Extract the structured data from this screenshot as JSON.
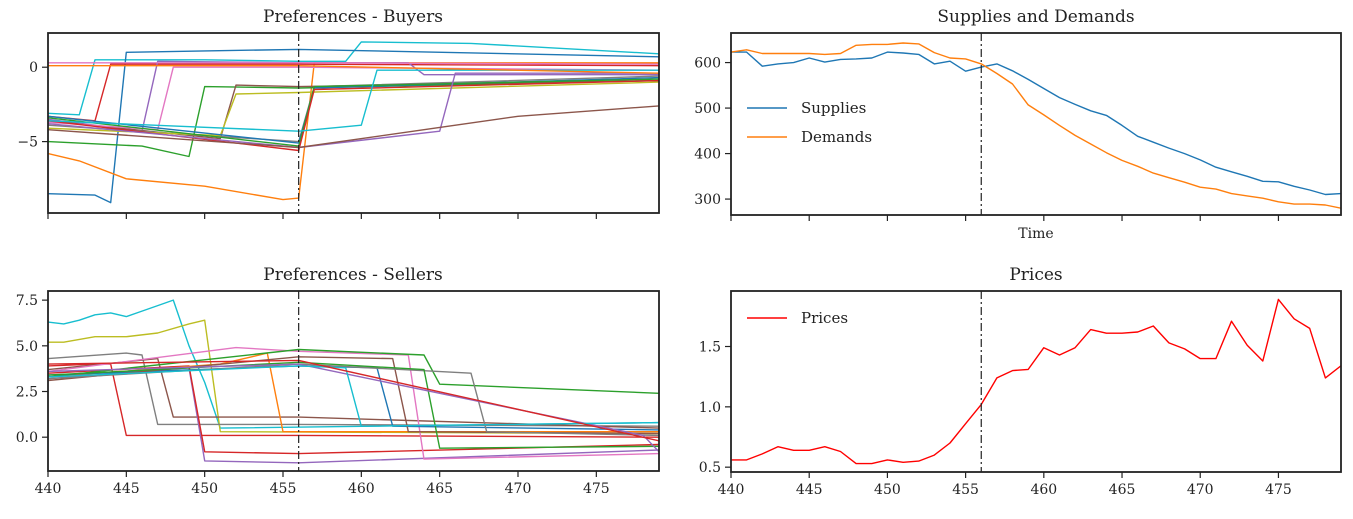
{
  "chart_data": [
    {
      "id": "buyers",
      "type": "line",
      "title": "Preferences - Buyers",
      "xlabel": "",
      "ylabel": "",
      "xlim": [
        440,
        479
      ],
      "ylim": [
        -9.8,
        2.3
      ],
      "yticks": [
        0,
        -5
      ],
      "ytick_labels": [
        "0",
        "−5"
      ],
      "xticks": [
        440,
        445,
        450,
        455,
        460,
        465,
        470,
        475
      ],
      "show_xtick_labels": false,
      "vline": 456,
      "series": [
        {
          "color": "#17becf",
          "x": [
            440,
            442,
            443,
            450,
            456,
            459,
            460,
            467,
            479
          ],
          "y": [
            -3.1,
            -3.2,
            0.5,
            0.5,
            0.4,
            0.4,
            1.7,
            1.6,
            0.9
          ]
        },
        {
          "color": "#1f77b4",
          "x": [
            440,
            443,
            444,
            445,
            450,
            456,
            479
          ],
          "y": [
            -8.5,
            -8.6,
            -9.1,
            1.0,
            1.1,
            1.2,
            0.7
          ]
        },
        {
          "color": "#ff7f0e",
          "x": [
            440,
            442,
            445,
            450,
            455,
            456,
            457,
            479
          ],
          "y": [
            -5.8,
            -6.3,
            -7.5,
            -8.0,
            -8.9,
            -8.8,
            0.3,
            0.3
          ]
        },
        {
          "color": "#2ca02c",
          "x": [
            440,
            446,
            449,
            450,
            456,
            479
          ],
          "y": [
            -5.0,
            -5.3,
            -6.0,
            -1.3,
            -1.4,
            -0.9
          ]
        },
        {
          "color": "#d62728",
          "x": [
            440,
            443,
            444,
            456,
            479
          ],
          "y": [
            -3.3,
            -3.6,
            0.2,
            0.2,
            0.1
          ]
        },
        {
          "color": "#9467bd",
          "x": [
            440,
            446,
            447,
            456,
            463,
            464,
            479
          ],
          "y": [
            -3.5,
            -4.3,
            0.4,
            0.3,
            0.3,
            -0.5,
            -0.5
          ]
        },
        {
          "color": "#8c564b",
          "x": [
            440,
            451,
            452,
            456,
            479
          ],
          "y": [
            -3.6,
            -4.8,
            -1.2,
            -1.3,
            -0.9
          ]
        },
        {
          "color": "#e377c2",
          "x": [
            440,
            447,
            448,
            456,
            479
          ],
          "y": [
            -3.7,
            -4.2,
            0.0,
            0.0,
            -0.2
          ]
        },
        {
          "color": "#7f7f7f",
          "x": [
            440,
            456,
            457,
            479
          ],
          "y": [
            -3.9,
            -5.0,
            -1.3,
            -0.6
          ]
        },
        {
          "color": "#bcbd22",
          "x": [
            440,
            451,
            452,
            456,
            479
          ],
          "y": [
            -4.1,
            -4.6,
            -1.8,
            -1.7,
            -1.0
          ]
        },
        {
          "color": "#1f77b4",
          "x": [
            440,
            456,
            457,
            479
          ],
          "y": [
            -3.3,
            -5.1,
            -1.4,
            -0.7
          ]
        },
        {
          "color": "#2ca02c",
          "x": [
            440,
            456,
            457,
            479
          ],
          "y": [
            -3.4,
            -5.3,
            -1.3,
            -0.8
          ]
        },
        {
          "color": "#d62728",
          "x": [
            440,
            456,
            457,
            479
          ],
          "y": [
            -3.6,
            -5.6,
            -1.5,
            -0.9
          ]
        },
        {
          "color": "#9467bd",
          "x": [
            440,
            456,
            465,
            466,
            479
          ],
          "y": [
            -3.8,
            -5.4,
            -4.3,
            -0.4,
            -0.4
          ]
        },
        {
          "color": "#8c564b",
          "x": [
            440,
            456,
            470,
            479
          ],
          "y": [
            -4.2,
            -5.4,
            -3.3,
            -2.6
          ]
        },
        {
          "color": "#17becf",
          "x": [
            440,
            456,
            460,
            461,
            479
          ],
          "y": [
            -3.6,
            -4.3,
            -3.9,
            -0.2,
            -0.2
          ]
        },
        {
          "color": "#e377c2",
          "x": [
            440,
            456,
            479
          ],
          "y": [
            0.3,
            0.3,
            0.2
          ]
        },
        {
          "color": "#ff7f0e",
          "x": [
            440,
            456,
            479
          ],
          "y": [
            0.1,
            0.1,
            -0.4
          ]
        }
      ]
    },
    {
      "id": "sellers",
      "type": "line",
      "title": "Preferences - Sellers",
      "xlabel": "",
      "ylabel": "",
      "xlim": [
        440,
        479
      ],
      "ylim": [
        -1.85,
        8.0
      ],
      "yticks": [
        7.5,
        5.0,
        2.5,
        0.0
      ],
      "ytick_labels": [
        "7.5",
        "5.0",
        "2.5",
        "0.0"
      ],
      "xticks": [
        440,
        445,
        450,
        455,
        460,
        465,
        470,
        475
      ],
      "show_xtick_labels": true,
      "vline": 456,
      "series": [
        {
          "color": "#17becf",
          "x": [
            440,
            441,
            442,
            443,
            444,
            445,
            446,
            447,
            448,
            449,
            450,
            451,
            479
          ],
          "y": [
            6.3,
            6.2,
            6.4,
            6.7,
            6.8,
            6.6,
            6.9,
            7.2,
            7.5,
            5.0,
            3.0,
            0.5,
            0.8
          ]
        },
        {
          "color": "#bcbd22",
          "x": [
            440,
            441,
            443,
            445,
            447,
            449,
            450,
            451,
            479
          ],
          "y": [
            5.2,
            5.2,
            5.5,
            5.5,
            5.7,
            6.2,
            6.4,
            0.3,
            0.2
          ]
        },
        {
          "color": "#d62728",
          "x": [
            440,
            443,
            444,
            445,
            456,
            479
          ],
          "y": [
            3.9,
            4.0,
            4.0,
            0.1,
            0.1,
            0.0
          ]
        },
        {
          "color": "#7f7f7f",
          "x": [
            440,
            445,
            446,
            447,
            456,
            479
          ],
          "y": [
            4.3,
            4.6,
            4.5,
            0.7,
            0.7,
            0.6
          ]
        },
        {
          "color": "#8c564b",
          "x": [
            440,
            447,
            448,
            456,
            479
          ],
          "y": [
            3.7,
            4.3,
            1.1,
            1.1,
            0.5
          ]
        },
        {
          "color": "#9467bd",
          "x": [
            440,
            449,
            450,
            456,
            479
          ],
          "y": [
            3.2,
            3.8,
            -1.3,
            -1.4,
            -0.7
          ]
        },
        {
          "color": "#d62728",
          "x": [
            440,
            449,
            450,
            456,
            479
          ],
          "y": [
            3.5,
            3.9,
            -0.8,
            -0.9,
            -0.4
          ]
        },
        {
          "color": "#ff7f0e",
          "x": [
            440,
            451,
            452,
            453,
            454,
            455,
            479
          ],
          "y": [
            3.3,
            4.0,
            4.2,
            4.4,
            4.6,
            0.3,
            0.3
          ]
        },
        {
          "color": "#e377c2",
          "x": [
            440,
            452,
            456,
            463,
            464,
            479
          ],
          "y": [
            3.6,
            4.9,
            4.7,
            4.5,
            -1.2,
            -0.9
          ]
        },
        {
          "color": "#2ca02c",
          "x": [
            440,
            456,
            464,
            465,
            479
          ],
          "y": [
            3.3,
            4.8,
            4.5,
            2.9,
            2.4
          ]
        },
        {
          "color": "#1f77b4",
          "x": [
            440,
            456,
            461,
            462,
            479
          ],
          "y": [
            3.4,
            3.9,
            3.8,
            0.6,
            0.4
          ]
        },
        {
          "color": "#8c564b",
          "x": [
            440,
            456,
            462,
            463,
            479
          ],
          "y": [
            3.1,
            4.4,
            4.3,
            0.3,
            0.2
          ]
        },
        {
          "color": "#7f7f7f",
          "x": [
            440,
            456,
            467,
            468,
            479
          ],
          "y": [
            3.2,
            4.0,
            3.5,
            0.3,
            0.1
          ]
        },
        {
          "color": "#2ca02c",
          "x": [
            440,
            456,
            464,
            465,
            479
          ],
          "y": [
            3.4,
            4.1,
            3.7,
            -0.6,
            -0.5
          ]
        },
        {
          "color": "#9467bd",
          "x": [
            440,
            456,
            478,
            479
          ],
          "y": [
            3.6,
            4.0,
            0.1,
            -0.8
          ]
        },
        {
          "color": "#17becf",
          "x": [
            440,
            456,
            459,
            460,
            479
          ],
          "y": [
            3.3,
            3.9,
            3.8,
            0.6,
            0.8
          ]
        },
        {
          "color": "#d62728",
          "x": [
            440,
            456,
            479
          ],
          "y": [
            4.0,
            4.2,
            -0.2
          ]
        }
      ]
    },
    {
      "id": "supplies",
      "type": "line",
      "title": "Supplies and Demands",
      "xlabel": "Time",
      "ylabel": "",
      "xlim": [
        440,
        479
      ],
      "ylim": [
        265,
        665
      ],
      "yticks": [
        600,
        500,
        400,
        300
      ],
      "ytick_labels": [
        "600",
        "500",
        "400",
        "300"
      ],
      "xticks": [
        440,
        445,
        450,
        455,
        460,
        465,
        470,
        475
      ],
      "show_xtick_labels": false,
      "vline": 456,
      "legend": "upper-left",
      "series": [
        {
          "name": "Supplies",
          "color": "#1f77b4",
          "x": [
            440,
            441,
            442,
            443,
            444,
            445,
            446,
            447,
            448,
            449,
            450,
            451,
            452,
            453,
            454,
            455,
            456,
            457,
            458,
            459,
            460,
            461,
            462,
            463,
            464,
            465,
            466,
            467,
            468,
            469,
            470,
            471,
            472,
            473,
            474,
            475,
            476,
            477,
            478,
            479
          ],
          "y": [
            623,
            623,
            592,
            597,
            600,
            610,
            601,
            607,
            608,
            610,
            623,
            621,
            618,
            597,
            603,
            581,
            590,
            597,
            582,
            563,
            543,
            523,
            508,
            494,
            484,
            462,
            438,
            425,
            412,
            400,
            386,
            370,
            360,
            350,
            339,
            338,
            328,
            320,
            310,
            312
          ]
        },
        {
          "name": "Demands",
          "color": "#ff7f0e",
          "x": [
            440,
            441,
            442,
            443,
            444,
            445,
            446,
            447,
            448,
            449,
            450,
            451,
            452,
            453,
            454,
            455,
            456,
            457,
            458,
            459,
            460,
            461,
            462,
            463,
            464,
            465,
            466,
            467,
            468,
            469,
            470,
            471,
            472,
            473,
            474,
            475,
            476,
            477,
            478,
            479
          ],
          "y": [
            623,
            628,
            620,
            620,
            620,
            620,
            618,
            620,
            638,
            640,
            640,
            643,
            641,
            622,
            610,
            608,
            597,
            576,
            553,
            507,
            485,
            462,
            440,
            421,
            402,
            385,
            372,
            357,
            347,
            337,
            326,
            322,
            312,
            307,
            302,
            294,
            289,
            289,
            287,
            280
          ]
        }
      ]
    },
    {
      "id": "prices",
      "type": "line",
      "title": "Prices",
      "xlabel": "",
      "ylabel": "",
      "xlim": [
        440,
        479
      ],
      "ylim": [
        0.46,
        1.96
      ],
      "yticks": [
        1.5,
        1.0,
        0.5
      ],
      "ytick_labels": [
        "1.5",
        "1.0",
        "0.5"
      ],
      "xticks": [
        440,
        445,
        450,
        455,
        460,
        465,
        470,
        475
      ],
      "show_xtick_labels": true,
      "vline": 456,
      "legend": "upper-left",
      "series": [
        {
          "name": "Prices",
          "color": "#ff0000",
          "x": [
            440,
            441,
            442,
            443,
            444,
            445,
            446,
            447,
            448,
            449,
            450,
            451,
            452,
            453,
            454,
            455,
            456,
            457,
            458,
            459,
            460,
            461,
            462,
            463,
            464,
            465,
            466,
            467,
            468,
            469,
            470,
            471,
            472,
            473,
            474,
            475,
            476,
            477,
            478,
            479
          ],
          "y": [
            0.56,
            0.56,
            0.61,
            0.67,
            0.64,
            0.64,
            0.67,
            0.63,
            0.53,
            0.53,
            0.56,
            0.54,
            0.55,
            0.6,
            0.7,
            0.86,
            1.02,
            1.24,
            1.3,
            1.31,
            1.49,
            1.43,
            1.49,
            1.64,
            1.61,
            1.61,
            1.62,
            1.67,
            1.53,
            1.48,
            1.4,
            1.4,
            1.71,
            1.51,
            1.38,
            1.89,
            1.73,
            1.65,
            1.24,
            1.34
          ]
        }
      ]
    }
  ]
}
